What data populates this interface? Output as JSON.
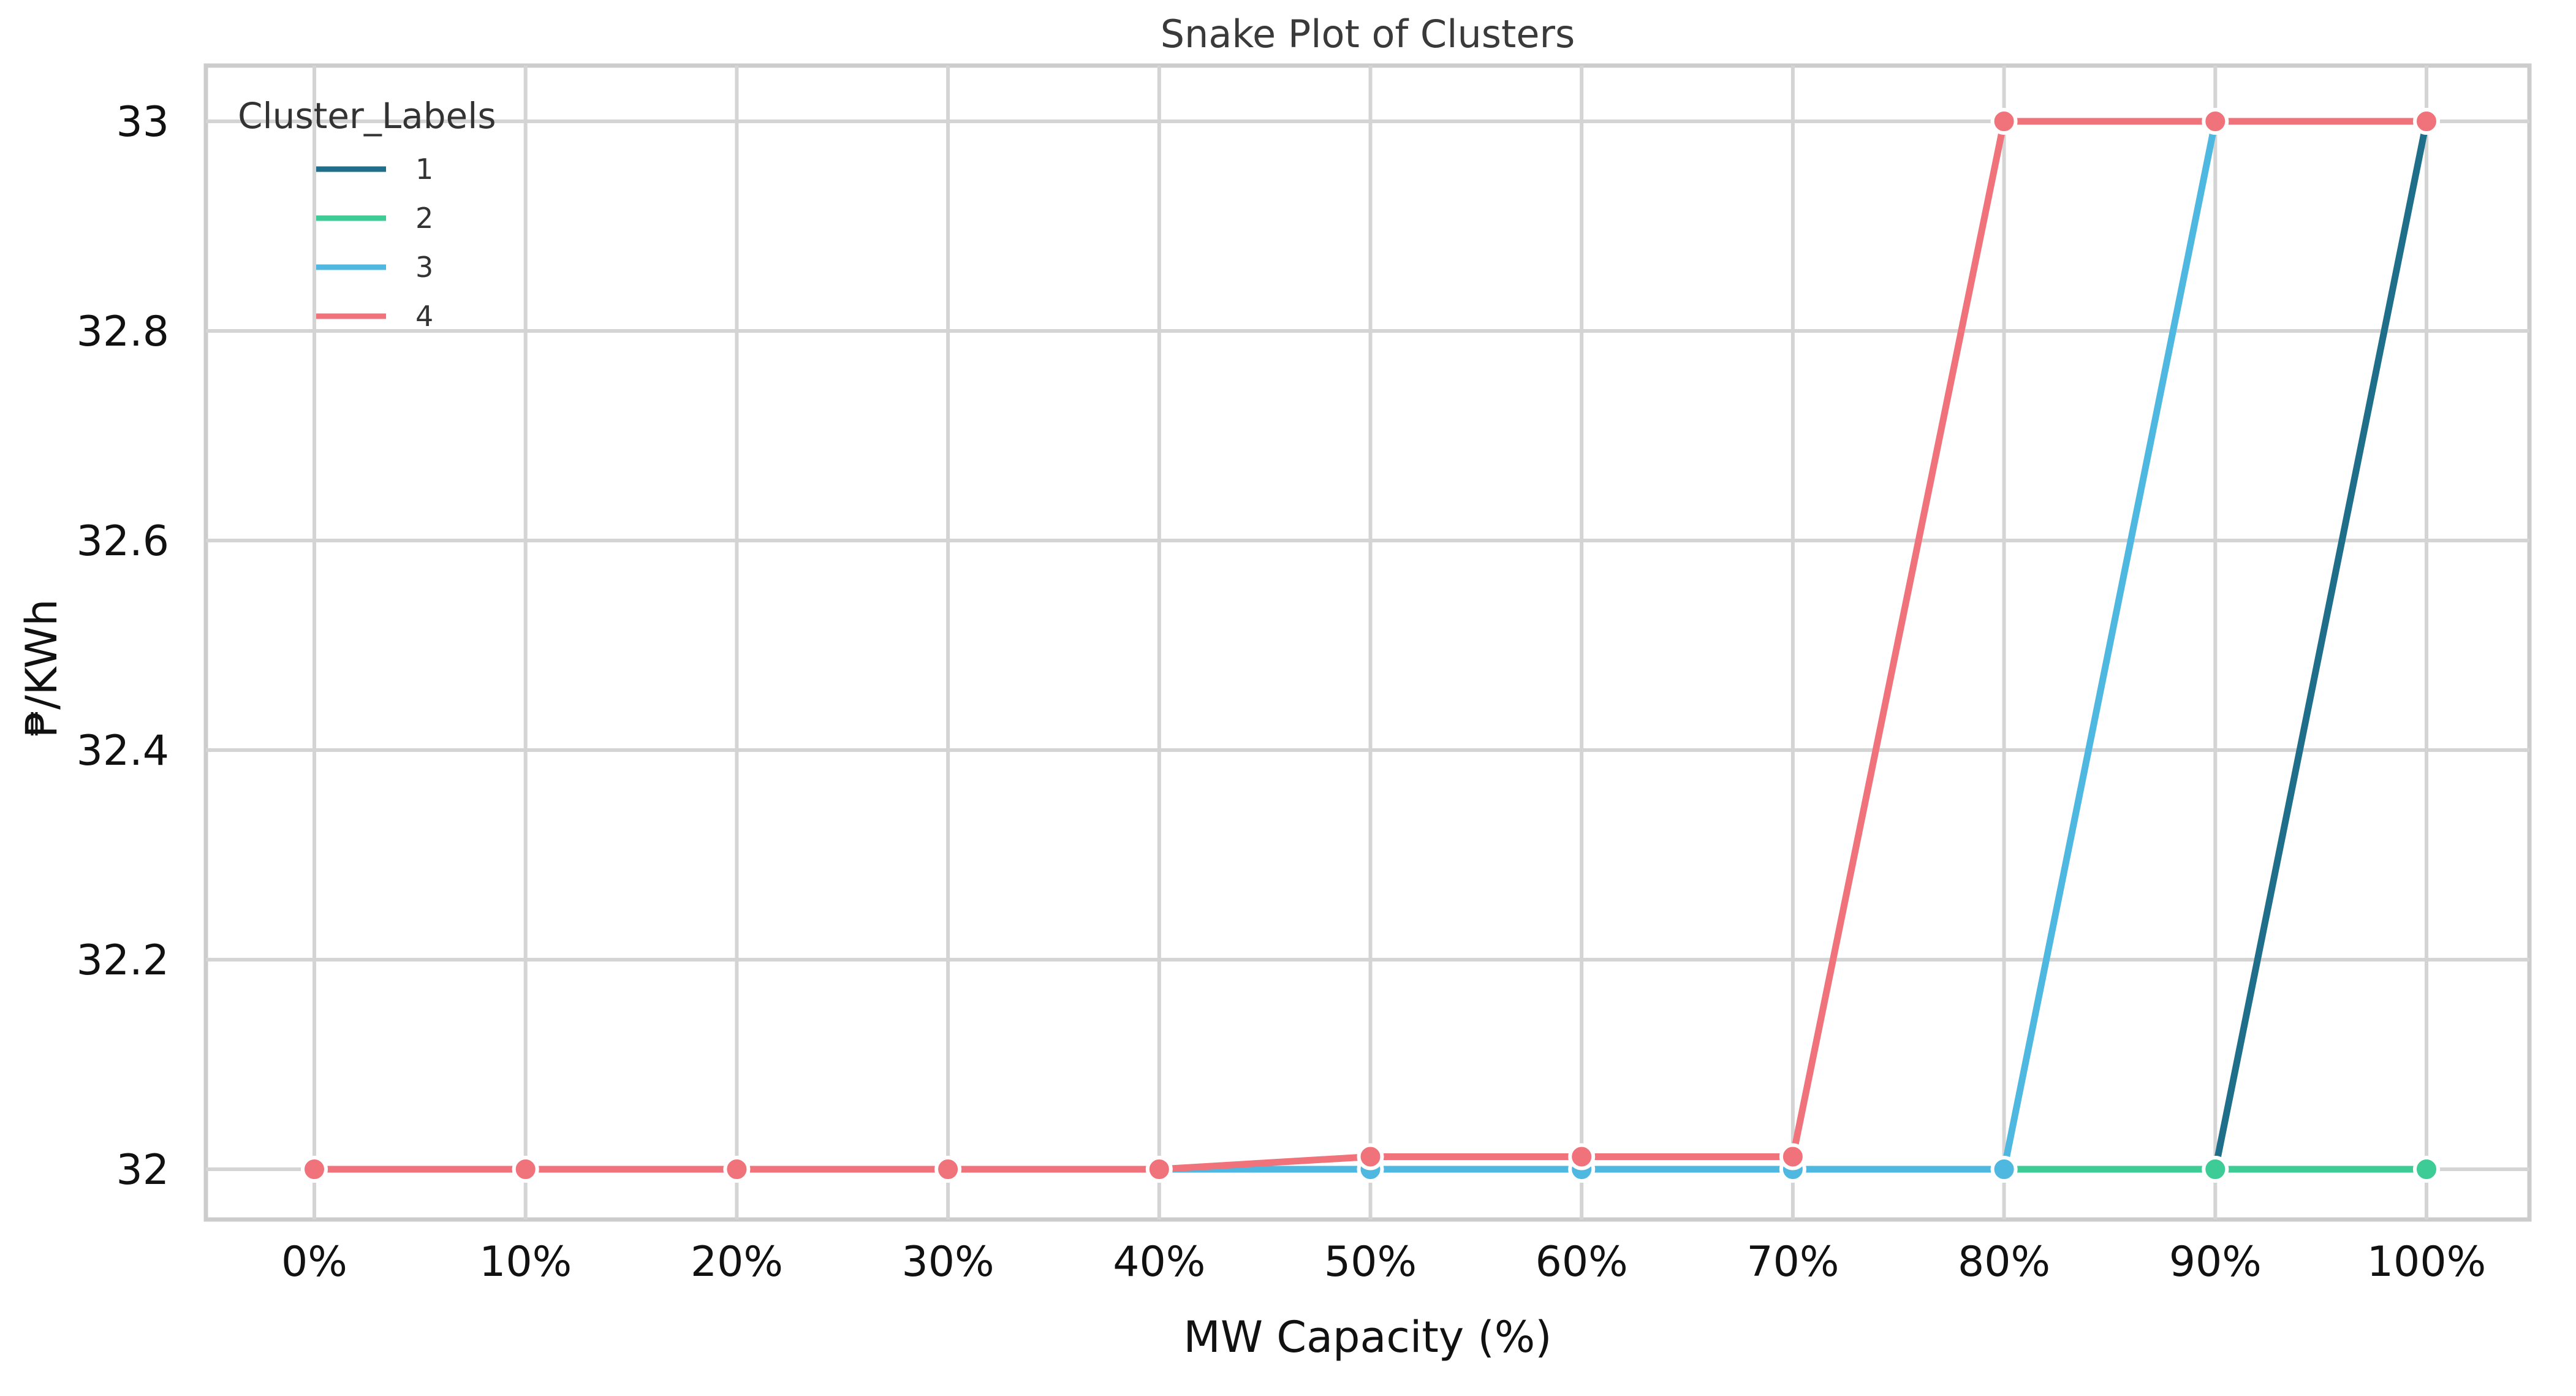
{
  "chart_data": {
    "type": "line",
    "title": "Snake Plot of Clusters",
    "xlabel": "MW Capacity (%)",
    "ylabel": "₱/KWh",
    "categories": [
      "0%",
      "10%",
      "20%",
      "30%",
      "40%",
      "50%",
      "60%",
      "70%",
      "80%",
      "90%",
      "100%"
    ],
    "ylim": [
      31.95,
      33.05
    ],
    "yticks": [
      {
        "value": 32,
        "label": "32"
      },
      {
        "value": 32.2,
        "label": "32.2"
      },
      {
        "value": 32.4,
        "label": "32.4"
      },
      {
        "value": 32.6,
        "label": "32.6"
      },
      {
        "value": 32.8,
        "label": "32.8"
      },
      {
        "value": 33,
        "label": "33"
      }
    ],
    "grid": true,
    "legend": {
      "title": "Cluster_Labels",
      "placement": "top-left"
    },
    "series": [
      {
        "name": "1",
        "color": "#1f6f8b",
        "marker": "#4fb8e0",
        "values": [
          32,
          32,
          32,
          32,
          32,
          32,
          32,
          32,
          32,
          32,
          33
        ]
      },
      {
        "name": "2",
        "color": "#3dcc96",
        "marker": "#3dcc96",
        "values": [
          32,
          32,
          32,
          32,
          32,
          32,
          32,
          32,
          32,
          32,
          32
        ]
      },
      {
        "name": "3",
        "color": "#4fb8e0",
        "marker": "#4fb8e0",
        "values": [
          32,
          32,
          32,
          32,
          32,
          32,
          32,
          32,
          32,
          33,
          33
        ]
      },
      {
        "name": "4",
        "color": "#f0727a",
        "marker": "#f0727a",
        "values": [
          32,
          32,
          32,
          32,
          32,
          32.012,
          32.012,
          32.012,
          33,
          33,
          33
        ]
      }
    ]
  }
}
